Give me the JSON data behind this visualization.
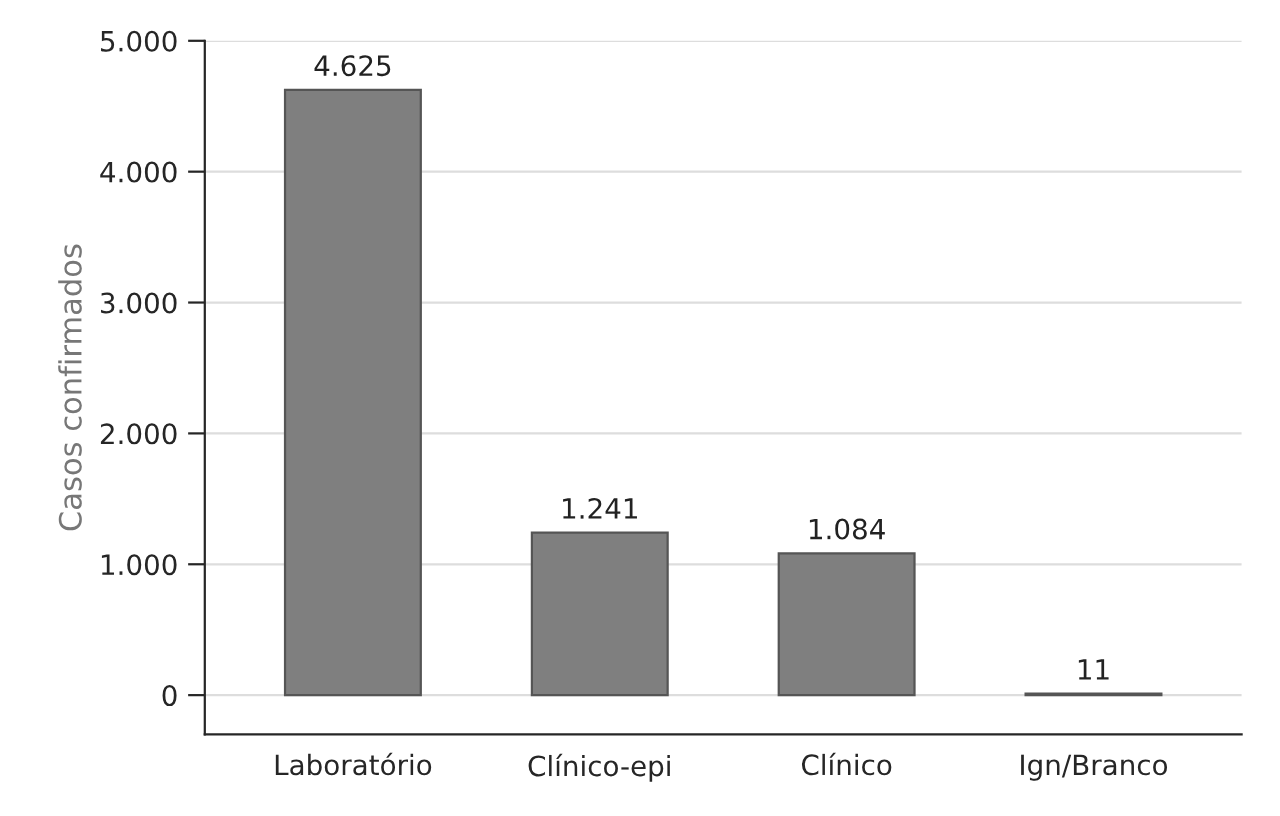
{
  "chart_data": {
    "type": "bar",
    "ylabel": "Casos confirmados",
    "categories": [
      "Laboratório",
      "Clínico-epi",
      "Clínico",
      "Ign/Branco"
    ],
    "values": [
      4625,
      1241,
      1084,
      11
    ],
    "value_labels": [
      "4.625",
      "1.241",
      "1.084",
      "11"
    ],
    "color": "#7f7f7f",
    "ylim": [
      -300,
      5000
    ],
    "yticks": [
      {
        "value": 0,
        "label": "0"
      },
      {
        "value": 1000,
        "label": "1.000"
      },
      {
        "value": 2000,
        "label": "2.000"
      },
      {
        "value": 3000,
        "label": "3.000"
      },
      {
        "value": 4000,
        "label": "4.000"
      },
      {
        "value": 5000,
        "label": "5.000"
      }
    ],
    "grid": "y"
  }
}
